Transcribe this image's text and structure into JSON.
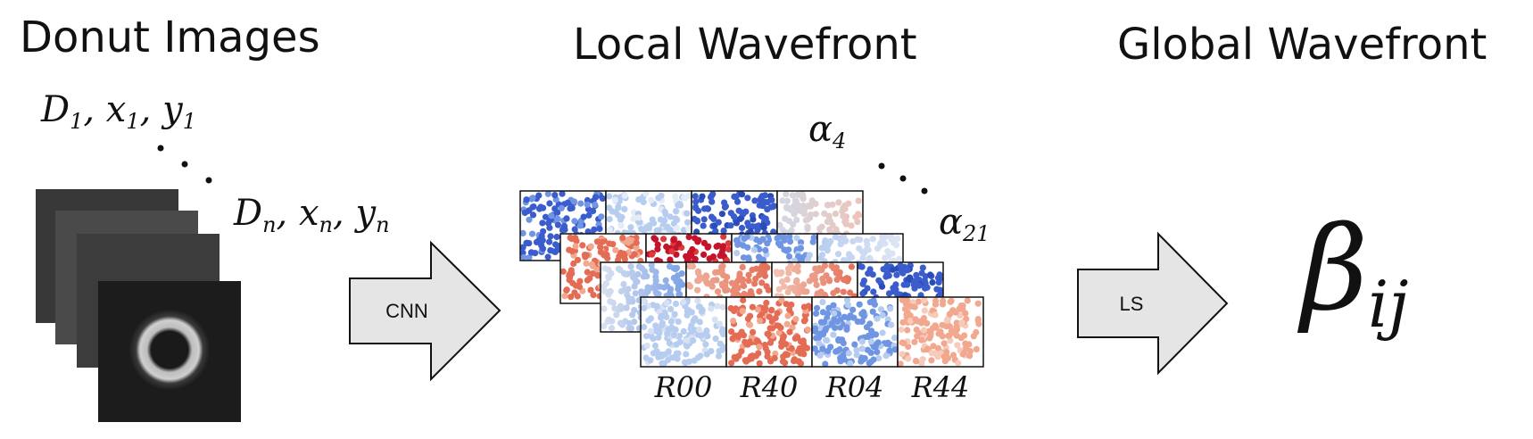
{
  "titles": {
    "donut": "Donut Images",
    "local": "Local Wavefront",
    "global": "Global Wavefront"
  },
  "donut_labels": {
    "first": {
      "D": "D",
      "x": "x",
      "y": "y",
      "index": "1"
    },
    "last": {
      "D": "D",
      "x": "x",
      "y": "y",
      "index": "n"
    }
  },
  "arrows": {
    "cnn": "CNN",
    "ls": "LS"
  },
  "alpha_labels": {
    "symbol": "α",
    "first_index": "4",
    "last_index": "21"
  },
  "wavefront_columns": [
    "R00",
    "R40",
    "R04",
    "R44"
  ],
  "beta": {
    "symbol": "β",
    "subscript": "ij"
  },
  "colors": {
    "arrow_fill": "#e5e5e5",
    "cool_blue": "#3b5fcf",
    "warm_red": "#e8705a",
    "deep_red": "#c2152a"
  }
}
